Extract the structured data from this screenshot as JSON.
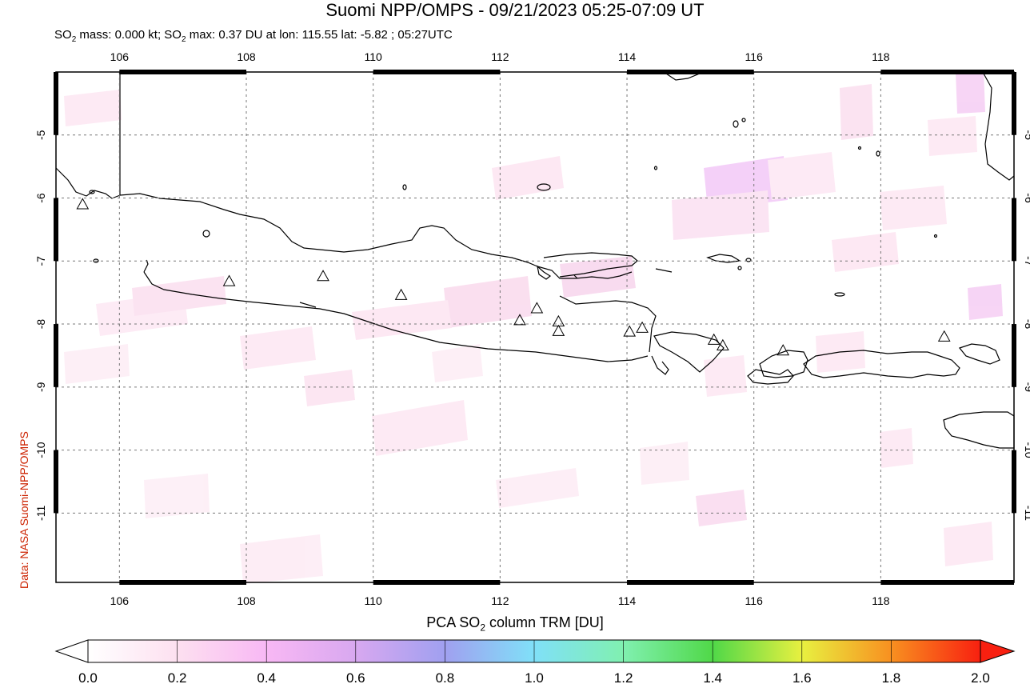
{
  "title": "Suomi NPP/OMPS - 09/21/2023 05:25-07:09 UT",
  "subtitle": {
    "prefix": "SO",
    "sub1": "2",
    "mid": " mass: 0.000 kt; SO",
    "sub2": "2",
    "suffix": " max: 0.37 DU at lon: 115.55 lat: -5.82 ; 05:27UTC"
  },
  "credit": "Data: NASA Suomi-NPP/OMPS",
  "map": {
    "lon_range": [
      105.0,
      120.1
    ],
    "lat_range": [
      -12.1,
      -4.0
    ],
    "lon_ticks": [
      "106",
      "108",
      "110",
      "112",
      "114",
      "116",
      "118"
    ],
    "lon_tick_values": [
      106,
      108,
      110,
      112,
      114,
      116,
      118
    ],
    "lat_ticks": [
      "-5",
      "-6",
      "-7",
      "-8",
      "-9",
      "-10",
      "-11"
    ],
    "lat_tick_values": [
      -5,
      -6,
      -7,
      -8,
      -9,
      -10,
      -11
    ],
    "volcano_marker": "triangle-icon",
    "volcanoes": [
      {
        "lon": 105.42,
        "lat": -6.1
      },
      {
        "lon": 107.73,
        "lat": -7.32
      },
      {
        "lon": 109.21,
        "lat": -7.24
      },
      {
        "lon": 110.44,
        "lat": -7.54
      },
      {
        "lon": 112.31,
        "lat": -7.94
      },
      {
        "lon": 112.58,
        "lat": -7.75
      },
      {
        "lon": 112.92,
        "lat": -7.96
      },
      {
        "lon": 112.92,
        "lat": -8.11
      },
      {
        "lon": 114.04,
        "lat": -8.12
      },
      {
        "lon": 114.24,
        "lat": -8.06
      },
      {
        "lon": 115.37,
        "lat": -8.25
      },
      {
        "lon": 115.51,
        "lat": -8.34
      },
      {
        "lon": 116.46,
        "lat": -8.42
      },
      {
        "lon": 119.0,
        "lat": -8.2
      }
    ]
  },
  "colorbar": {
    "title_prefix": "PCA SO",
    "title_sub": "2",
    "title_suffix": " column TRM [DU]",
    "labels": [
      "0.0",
      "0.2",
      "0.4",
      "0.6",
      "0.8",
      "1.0",
      "1.2",
      "1.4",
      "1.6",
      "1.8",
      "2.0"
    ],
    "colors": [
      "#ffffff",
      "#ffd0f0",
      "#e8a0f8",
      "#a0a0f0",
      "#80e8f8",
      "#80f0a0",
      "#40d040",
      "#f8f840",
      "#f88020",
      "#f82010"
    ]
  }
}
